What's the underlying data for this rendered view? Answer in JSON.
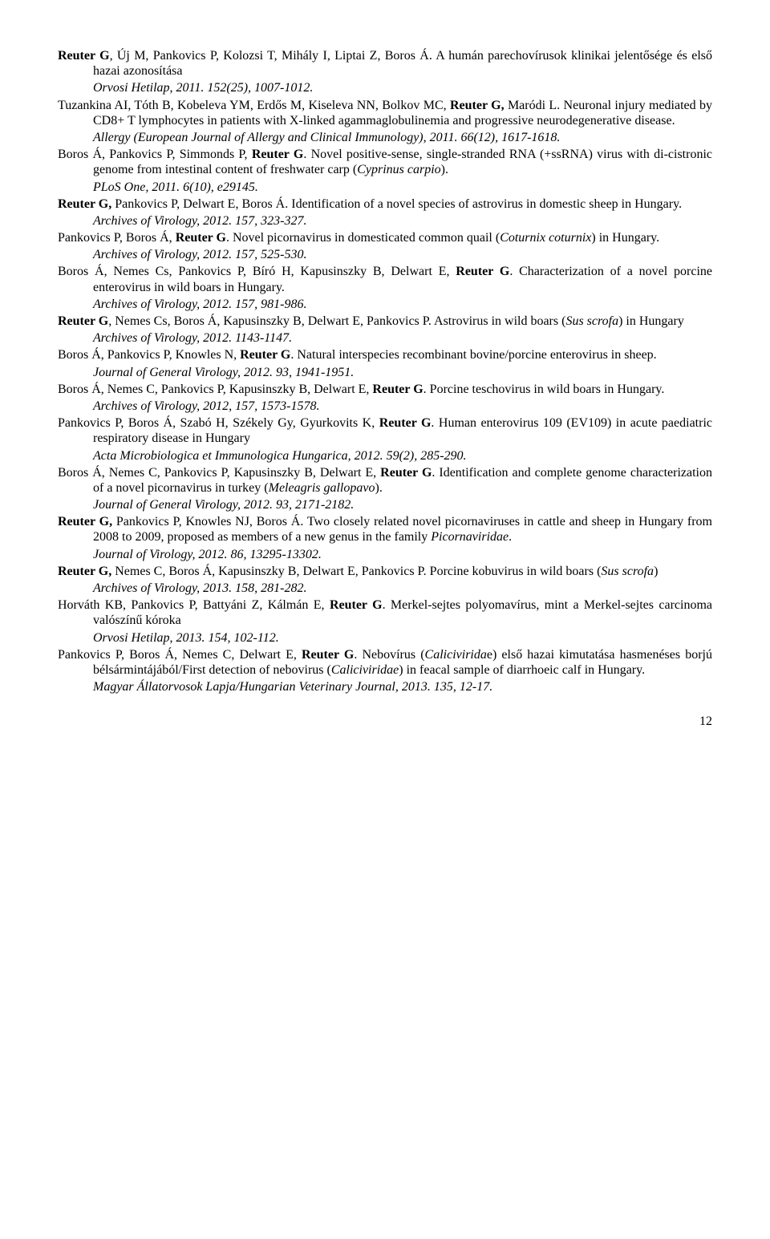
{
  "refs": [
    {
      "authors": [
        [
          "Reuter G",
          "b"
        ],
        [
          ", Új M, Pankovics P, Kolozsi T, Mihály I, Liptai Z, Boros Á. A humán parechovírusok klinikai jelentősége és első hazai azonosítása",
          ""
        ]
      ],
      "lines": [
        [
          [
            "Orvosi Hetilap, 2011. 152(25), 1007-1012.",
            "i"
          ]
        ]
      ]
    },
    {
      "authors": [
        [
          "Tuzankina AI, Tóth B, Kobeleva YM, Erdős M, Kiseleva NN, Bolkov MC, ",
          ""
        ],
        [
          "Reuter G,",
          "b"
        ],
        [
          " Maródi L. Neuronal injury mediated by CD8+ T lymphocytes in patients with X-linked agammaglobulinemia and progressive neurodegenerative disease.",
          ""
        ]
      ],
      "lines": [
        [
          [
            "Allergy (European Journal of Allergy and Clinical Immunology), 2011. 66(12), 1617-1618.",
            "i"
          ]
        ]
      ]
    },
    {
      "authors": [
        [
          "Boros Á, Pankovics P, Simmonds P, ",
          ""
        ],
        [
          "Reuter G",
          "b"
        ],
        [
          ". Novel positive-sense, single-stranded RNA (+ssRNA) virus with di-cistronic genome from intestinal content of freshwater carp (",
          ""
        ],
        [
          "Cyprinus carpio",
          "i"
        ],
        [
          ").",
          ""
        ]
      ],
      "lines": [
        [
          [
            "PLoS One, 2011. 6(10), e29145.",
            "i"
          ]
        ]
      ]
    },
    {
      "authors": [
        [
          "Reuter G,",
          "b"
        ],
        [
          " Pankovics P, Delwart E, Boros Á. Identification of a novel species of astrovirus in domestic sheep in Hungary.",
          ""
        ]
      ],
      "lines": [
        [
          [
            "Archives of Virology, 2012. 157, 323-327.",
            "i"
          ]
        ]
      ]
    },
    {
      "authors": [
        [
          "Pankovics P, Boros Á, ",
          ""
        ],
        [
          "Reuter G",
          "b"
        ],
        [
          ". Novel picornavirus in domesticated common quail (",
          ""
        ],
        [
          "Coturnix coturnix",
          "i"
        ],
        [
          ") in Hungary.",
          ""
        ]
      ],
      "lines": [
        [
          [
            "Archives of Virology, 2012. 157, 525-530.",
            "i"
          ]
        ]
      ]
    },
    {
      "authors": [
        [
          "Boros Á, Nemes Cs, Pankovics P, Bíró H, Kapusinszky B, Delwart E, ",
          ""
        ],
        [
          "Reuter G",
          "b"
        ],
        [
          ". Characterization of a novel porcine enterovirus in wild boars in Hungary.",
          ""
        ]
      ],
      "lines": [
        [
          [
            "Archives of Virology, 2012. 157, 981-986.",
            "i"
          ]
        ]
      ]
    },
    {
      "authors": [
        [
          "Reuter G",
          "b"
        ],
        [
          ", Nemes Cs, Boros Á, Kapusinszky B, Delwart E, Pankovics P. Astrovirus in wild boars (",
          ""
        ],
        [
          "Sus scrofa",
          "i"
        ],
        [
          ") in Hungary",
          ""
        ]
      ],
      "lines": [
        [
          [
            "Archives of Virology, 2012. 1143-1147.",
            "i"
          ]
        ]
      ]
    },
    {
      "authors": [
        [
          "Boros Á, Pankovics P, Knowles N, ",
          ""
        ],
        [
          "Reuter G",
          "b"
        ],
        [
          ". Natural interspecies recombinant bovine/porcine enterovirus in sheep.",
          ""
        ]
      ],
      "lines": [
        [
          [
            "Journal of General Virology, 2012. 93, 1941-1951.",
            "i"
          ]
        ]
      ]
    },
    {
      "authors": [
        [
          "Boros Á, Nemes C, Pankovics P, Kapusinszky B, Delwart E, ",
          ""
        ],
        [
          "Reuter G",
          "b"
        ],
        [
          ". Porcine teschovirus in wild boars in Hungary.",
          ""
        ]
      ],
      "lines": [
        [
          [
            "Archives of Virology, 2012, 157, 1573-1578.",
            "i"
          ]
        ]
      ]
    },
    {
      "authors": [
        [
          "Pankovics P, Boros Á, Szabó H, Székely Gy, Gyurkovits K, ",
          ""
        ],
        [
          "Reuter G",
          "b"
        ],
        [
          ". Human enterovirus 109 (EV109) in acute paediatric respiratory disease in Hungary",
          ""
        ]
      ],
      "lines": [
        [
          [
            "Acta Microbiologica et Immunologica Hungarica, 2012. 59(2), 285-290.",
            "i"
          ]
        ]
      ]
    },
    {
      "authors": [
        [
          "Boros Á, Nemes C, Pankovics P, Kapusinszky B, Delwart E, ",
          ""
        ],
        [
          "Reuter G",
          "b"
        ],
        [
          ". Identification and complete genome characterization of a novel picornavirus in turkey (",
          ""
        ],
        [
          "Meleagris gallopavo",
          "i"
        ],
        [
          ").",
          ""
        ]
      ],
      "lines": [
        [
          [
            "Journal of General Virology, 2012. 93, 2171-2182.",
            "i"
          ]
        ]
      ]
    },
    {
      "authors": [
        [
          "Reuter G,",
          "b"
        ],
        [
          " Pankovics P, Knowles NJ, Boros Á. Two closely related novel picornaviruses in cattle and sheep in Hungary from 2008 to 2009, proposed as members of a new genus in the family ",
          ""
        ],
        [
          "Picornaviridae",
          "i"
        ],
        [
          ".",
          ""
        ]
      ],
      "lines": [
        [
          [
            "Journal of Virology, 2012. 86, 13295-13302.",
            "i"
          ]
        ]
      ]
    },
    {
      "authors": [
        [
          "Reuter G,",
          "b"
        ],
        [
          " Nemes C, Boros Á, Kapusinszky B, Delwart E, Pankovics P. Porcine kobuvirus in wild boars (",
          ""
        ],
        [
          "Sus scrofa",
          "i"
        ],
        [
          ")",
          ""
        ]
      ],
      "lines": [
        [
          [
            "Archives of Virology, 2013. 158, 281-282.",
            "i"
          ]
        ]
      ]
    },
    {
      "authors": [
        [
          "Horváth KB, Pankovics P, Battyáni Z, Kálmán E, ",
          ""
        ],
        [
          "Reuter G",
          "b"
        ],
        [
          ". Merkel-sejtes polyomavírus, mint a Merkel-sejtes carcinoma valószínű kóroka",
          ""
        ]
      ],
      "lines": [
        [
          [
            "Orvosi Hetilap, 2013. 154, 102-112.",
            "i"
          ]
        ]
      ]
    },
    {
      "authors": [
        [
          "Pankovics P, Boros Á, Nemes C, Delwart E, ",
          ""
        ],
        [
          "Reuter G",
          "b"
        ],
        [
          ". Nebovírus (",
          ""
        ],
        [
          "Calicivirida",
          "i"
        ],
        [
          "e) első hazai kimutatása hasmenéses borjú bélsármintájából/First detection of nebovirus (",
          ""
        ],
        [
          "Caliciviridae",
          "i"
        ],
        [
          ") in feacal sample of diarrhoeic calf in Hungary.",
          ""
        ]
      ],
      "lines": [
        [
          [
            "Magyar Állatorvosok Lapja/Hungarian Veterinary Journal, 2013. 135, 12-17.",
            "i"
          ]
        ]
      ]
    }
  ],
  "pageNumber": "12"
}
